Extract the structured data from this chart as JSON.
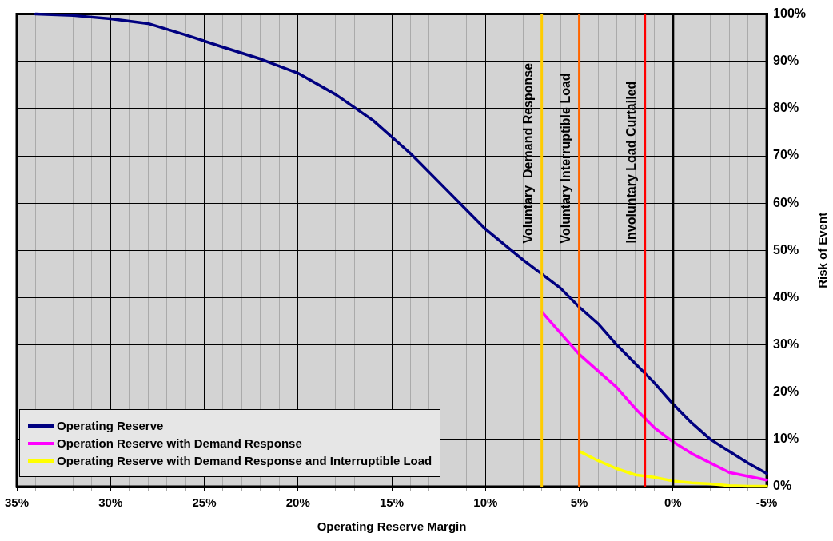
{
  "chart_data": {
    "type": "line",
    "xlabel": "Operating Reserve Margin",
    "ylabel": "Risk of Event",
    "xlim": [
      35,
      -5
    ],
    "ylim": [
      0,
      100
    ],
    "xticks": [
      {
        "value": 35,
        "label": "35%"
      },
      {
        "value": 34,
        "label": null
      },
      {
        "value": 33,
        "label": null
      },
      {
        "value": 32,
        "label": null
      },
      {
        "value": 31,
        "label": null
      },
      {
        "value": 30,
        "label": "30%"
      },
      {
        "value": 29,
        "label": null
      },
      {
        "value": 28,
        "label": null
      },
      {
        "value": 27,
        "label": null
      },
      {
        "value": 26,
        "label": null
      },
      {
        "value": 25,
        "label": "25%"
      },
      {
        "value": 24,
        "label": null
      },
      {
        "value": 23,
        "label": null
      },
      {
        "value": 22,
        "label": null
      },
      {
        "value": 21,
        "label": null
      },
      {
        "value": 20,
        "label": "20%"
      },
      {
        "value": 19,
        "label": null
      },
      {
        "value": 18,
        "label": null
      },
      {
        "value": 17,
        "label": null
      },
      {
        "value": 16,
        "label": null
      },
      {
        "value": 15,
        "label": "15%"
      },
      {
        "value": 14,
        "label": null
      },
      {
        "value": 13,
        "label": null
      },
      {
        "value": 12,
        "label": null
      },
      {
        "value": 11,
        "label": null
      },
      {
        "value": 10,
        "label": "10%"
      },
      {
        "value": 9,
        "label": null
      },
      {
        "value": 8,
        "label": null
      },
      {
        "value": 7,
        "label": null
      },
      {
        "value": 6,
        "label": null
      },
      {
        "value": 5,
        "label": "5%"
      },
      {
        "value": 4,
        "label": null
      },
      {
        "value": 3,
        "label": null
      },
      {
        "value": 2,
        "label": null
      },
      {
        "value": 1,
        "label": null
      },
      {
        "value": 0,
        "label": "0%"
      },
      {
        "value": -1,
        "label": null
      },
      {
        "value": -2,
        "label": null
      },
      {
        "value": -3,
        "label": null
      },
      {
        "value": -4,
        "label": null
      },
      {
        "value": -5,
        "label": "-5%"
      }
    ],
    "yticks": [
      {
        "value": 0,
        "label": "0%"
      },
      {
        "value": 10,
        "label": "10%"
      },
      {
        "value": 20,
        "label": "20%"
      },
      {
        "value": 30,
        "label": "30%"
      },
      {
        "value": 40,
        "label": "40%"
      },
      {
        "value": 50,
        "label": "50%"
      },
      {
        "value": 60,
        "label": "60%"
      },
      {
        "value": 70,
        "label": "70%"
      },
      {
        "value": 80,
        "label": "80%"
      },
      {
        "value": 90,
        "label": "90%"
      },
      {
        "value": 100,
        "label": "100%"
      }
    ],
    "grid": true,
    "legend": "bottom left",
    "marker": "none",
    "line_style": "solid",
    "series": [
      {
        "name": "Operating Reserve",
        "color": "#000080",
        "x": [
          34,
          32,
          30,
          28,
          26,
          24,
          22,
          20,
          18,
          16,
          14,
          12,
          10,
          8,
          7,
          6,
          5,
          4,
          3,
          2,
          1,
          0,
          -1,
          -2,
          -3,
          -4,
          -5
        ],
        "values": [
          100,
          99.7,
          99,
          98,
          95.6,
          93,
          90.5,
          87.5,
          83,
          77.5,
          70.5,
          62.5,
          54.5,
          48,
          45,
          42,
          38,
          34.5,
          30,
          26,
          22,
          17.5,
          13.5,
          10,
          7.5,
          5,
          2.8
        ]
      },
      {
        "name": "Operation Reserve with Demand Response",
        "color": "#ff00ff",
        "x": [
          7,
          6,
          5,
          4,
          3,
          2,
          1,
          0,
          -1,
          -2,
          -3,
          -4,
          -5
        ],
        "values": [
          37,
          32.5,
          28,
          24.5,
          21,
          16.5,
          12.5,
          9.5,
          7,
          5,
          3,
          2.2,
          1.4
        ]
      },
      {
        "name": "Operating Reserve with Demand Response and Interruptible Load",
        "color": "#ffff00",
        "x": [
          5,
          4,
          3,
          2,
          1,
          0,
          -1,
          -2,
          -3,
          -4,
          -5
        ],
        "values": [
          7.5,
          5.5,
          3.8,
          2.5,
          2,
          1.2,
          0.8,
          0.6,
          0.2,
          0.1,
          0.1
        ]
      }
    ],
    "ref_lines": [
      {
        "axis": "x",
        "value": 7,
        "label": "Voluntary  Demand Response",
        "color": "#ffcc00"
      },
      {
        "axis": "x",
        "value": 5,
        "label": "Voluntary Interruptible Load",
        "color": "#ff6600"
      },
      {
        "axis": "x",
        "value": 1.5,
        "label": "Involuntary Load Curtailed",
        "color": "#ff0000"
      },
      {
        "axis": "x",
        "value": 0,
        "label": null,
        "color": "#000000"
      }
    ]
  }
}
